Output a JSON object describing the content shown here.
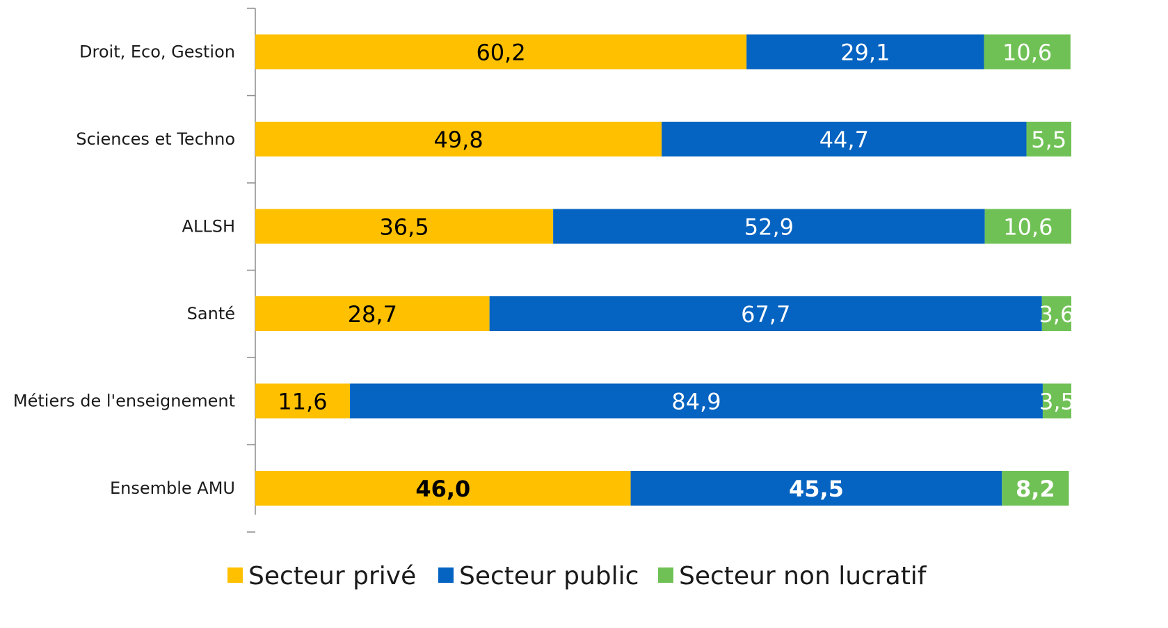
{
  "chart_data": {
    "type": "bar",
    "orientation": "horizontal",
    "stacked": true,
    "categories": [
      "Droit, Eco, Gestion",
      "Sciences et Techno",
      "ALLSH",
      "Santé",
      "Métiers de l'enseignement",
      "Ensemble AMU"
    ],
    "series": [
      {
        "name": "Secteur privé",
        "color": "#FFC000",
        "label_color": "#000000",
        "values": [
          60.2,
          49.8,
          36.5,
          28.7,
          11.6,
          46.0
        ],
        "labels": [
          "60,2",
          "49,8",
          "36,5",
          "28,7",
          "11,6",
          "46,0"
        ]
      },
      {
        "name": "Secteur public",
        "color": "#0563C1",
        "label_color": "#ffffff",
        "values": [
          29.1,
          44.7,
          52.9,
          67.7,
          84.9,
          45.5
        ],
        "labels": [
          "29,1",
          "44,7",
          "52,9",
          "67,7",
          "84,9",
          "45,5"
        ]
      },
      {
        "name": "Secteur non lucratif",
        "color": "#70C155",
        "label_color": "#ffffff",
        "values": [
          10.6,
          5.5,
          10.6,
          3.6,
          3.5,
          8.2
        ],
        "labels": [
          "10,6",
          "5,5",
          "10,6",
          "3,6",
          "3,5",
          "8,2"
        ]
      }
    ],
    "bold_category": "Ensemble AMU",
    "xlim": [
      0,
      100
    ],
    "grid": false,
    "legend_position": "bottom"
  }
}
